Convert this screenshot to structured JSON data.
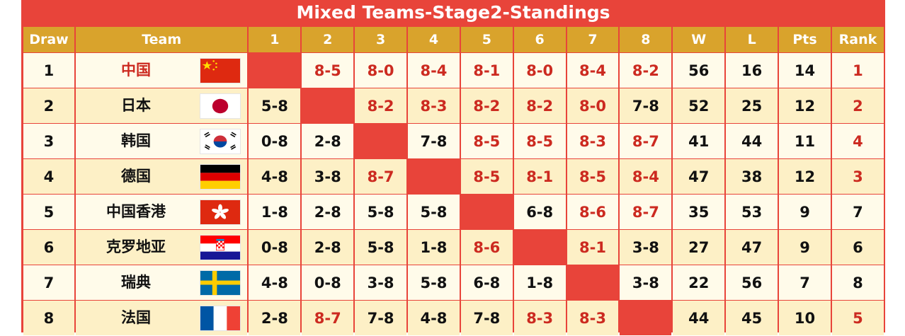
{
  "title": "Mixed Teams-Stage2-Standings",
  "headers": [
    "Draw",
    "Team",
    "1",
    "2",
    "3",
    "4",
    "5",
    "6",
    "7",
    "8",
    "W",
    "L",
    "Pts",
    "Rank"
  ],
  "colors": {
    "board_red": "#e8443a",
    "header_gold": "#d9a32c",
    "row_light": "#fffbea",
    "row_dark": "#fdf0c6",
    "win_red": "#cc2a20",
    "text_dark": "#111111"
  },
  "rows": [
    {
      "draw": "1",
      "team": "中国",
      "flag": "china-flag-icon",
      "home": true,
      "results": [
        "",
        "8-5",
        "8-0",
        "8-4",
        "8-1",
        "8-0",
        "8-4",
        "8-2"
      ],
      "w": "56",
      "l": "16",
      "pts": "14",
      "rank": "1"
    },
    {
      "draw": "2",
      "team": "日本",
      "flag": "japan-flag-icon",
      "home": false,
      "results": [
        "5-8",
        "",
        "8-2",
        "8-3",
        "8-2",
        "8-2",
        "8-0",
        "7-8"
      ],
      "w": "52",
      "l": "25",
      "pts": "12",
      "rank": "2"
    },
    {
      "draw": "3",
      "team": "韩国",
      "flag": "korea-flag-icon",
      "home": false,
      "results": [
        "0-8",
        "2-8",
        "",
        "7-8",
        "8-5",
        "8-5",
        "8-3",
        "8-7"
      ],
      "w": "41",
      "l": "44",
      "pts": "11",
      "rank": "4"
    },
    {
      "draw": "4",
      "team": "德国",
      "flag": "germany-flag-icon",
      "home": false,
      "results": [
        "4-8",
        "3-8",
        "8-7",
        "",
        "8-5",
        "8-1",
        "8-5",
        "8-4"
      ],
      "w": "47",
      "l": "38",
      "pts": "12",
      "rank": "3"
    },
    {
      "draw": "5",
      "team": "中国香港",
      "flag": "hong-kong-flag-icon",
      "home": false,
      "results": [
        "1-8",
        "2-8",
        "5-8",
        "5-8",
        "",
        "6-8",
        "8-6",
        "8-7"
      ],
      "w": "35",
      "l": "53",
      "pts": "9",
      "rank": "7"
    },
    {
      "draw": "6",
      "team": "克罗地亚",
      "flag": "croatia-flag-icon",
      "home": false,
      "results": [
        "0-8",
        "2-8",
        "5-8",
        "1-8",
        "8-6",
        "",
        "8-1",
        "3-8"
      ],
      "w": "27",
      "l": "47",
      "pts": "9",
      "rank": "6"
    },
    {
      "draw": "7",
      "team": "瑞典",
      "flag": "sweden-flag-icon",
      "home": false,
      "results": [
        "4-8",
        "0-8",
        "3-8",
        "5-8",
        "6-8",
        "1-8",
        "",
        "3-8"
      ],
      "w": "22",
      "l": "56",
      "pts": "7",
      "rank": "8"
    },
    {
      "draw": "8",
      "team": "法国",
      "flag": "france-flag-icon",
      "home": false,
      "results": [
        "2-8",
        "8-7",
        "7-8",
        "4-8",
        "7-8",
        "8-3",
        "8-3",
        ""
      ],
      "w": "44",
      "l": "45",
      "pts": "10",
      "rank": "5"
    }
  ]
}
